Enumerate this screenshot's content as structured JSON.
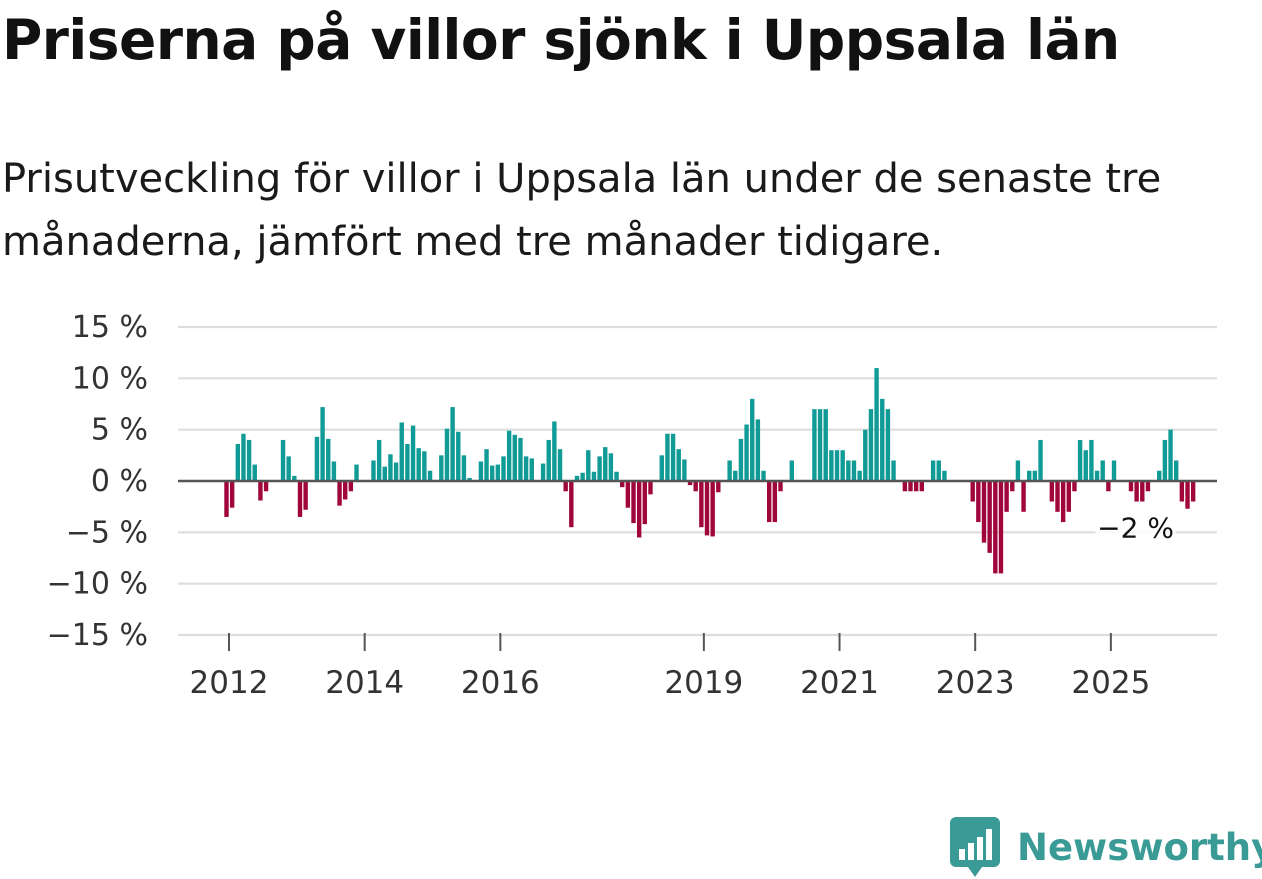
{
  "title": "Priserna på villor sjönk i Uppsala län",
  "subtitle": "Prisutveckling för villor i Uppsala län under de senaste tre månaderna, jämfört med tre månader tidigare.",
  "brand": {
    "name": "Newsworthy",
    "icon": "newsworthy-logo-icon"
  },
  "colors": {
    "positive": "#119b96",
    "negative": "#a0063c",
    "grid": "#dddddd",
    "zero_line": "#555555",
    "brand": "#3a9a96"
  },
  "chart_data": {
    "type": "bar",
    "title": "Priserna på villor sjönk i Uppsala län",
    "xlabel": "",
    "ylabel": "",
    "ylim": [
      -15,
      15
    ],
    "y_ticks": [
      15,
      10,
      5,
      0,
      -5,
      -10,
      -15
    ],
    "y_tick_labels": [
      "15 %",
      "10 %",
      "5 %",
      "0 %",
      "−5 %",
      "−10 %",
      "−15 %"
    ],
    "x_ticks": [
      {
        "label": "2012",
        "index": 0
      },
      {
        "label": "2014",
        "index": 24
      },
      {
        "label": "2016",
        "index": 48
      },
      {
        "label": "2019",
        "index": 84
      },
      {
        "label": "2021",
        "index": 108
      },
      {
        "label": "2023",
        "index": 132
      },
      {
        "label": "2025",
        "index": 156
      }
    ],
    "start": "2012-01",
    "frequency": "monthly",
    "series": [
      {
        "name": "Prisutveckling",
        "values": [
          -3.5,
          -2.6,
          3.6,
          4.6,
          4.0,
          1.6,
          -1.9,
          -1.0,
          0,
          0,
          4.0,
          2.4,
          0.5,
          -3.5,
          -2.8,
          0,
          4.3,
          7.2,
          4.1,
          1.9,
          -2.4,
          -1.8,
          -1.0,
          1.6,
          0,
          0,
          2.0,
          4.0,
          1.4,
          2.6,
          1.8,
          5.7,
          3.6,
          5.4,
          3.2,
          2.9,
          1.0,
          0,
          2.5,
          5.1,
          7.2,
          4.8,
          2.5,
          0.3,
          0,
          1.9,
          3.1,
          1.5,
          1.6,
          2.4,
          4.9,
          4.5,
          4.2,
          2.4,
          2.2,
          0,
          1.7,
          4.0,
          5.8,
          3.1,
          -1.0,
          -4.5,
          0.5,
          0.8,
          3.0,
          0.9,
          2.4,
          3.3,
          2.7,
          0.9,
          -0.6,
          -2.6,
          -4.1,
          -5.5,
          -4.2,
          -1.3,
          0,
          2.5,
          4.6,
          4.6,
          3.1,
          2.1,
          -0.4,
          -1.0,
          -4.5,
          -5.3,
          -5.4,
          -1.1,
          0,
          2.0,
          1.0,
          4.1,
          5.5,
          8.0,
          6.0,
          1.0,
          -4.0,
          -4.0,
          -1.0,
          0,
          2.0,
          0,
          0,
          0,
          7.0,
          7.0,
          7.0,
          3.0,
          3.0,
          3.0,
          2.0,
          2.0,
          1.0,
          5.0,
          7.0,
          11.0,
          8.0,
          7.0,
          2.0,
          0,
          -1.0,
          -1.0,
          -1.0,
          -1.0,
          0,
          2.0,
          2.0,
          1.0,
          0,
          0,
          0,
          0,
          -2.0,
          -4.0,
          -6.0,
          -7.0,
          -9.0,
          -9.0,
          -3.0,
          -1.0,
          2.0,
          -3.0,
          1.0,
          1.0,
          4.0,
          0,
          -2.0,
          -3.0,
          -4.0,
          -3.0,
          -1.0,
          4.0,
          3.0,
          4.0,
          1.0,
          2.0,
          -1.0,
          2.0,
          0,
          0,
          -1.0,
          -2.0,
          -2.0,
          -1.0,
          0,
          1.0,
          4.0,
          5.0,
          2.0,
          -2.0,
          -2.7,
          -2.0
        ]
      }
    ],
    "annotation": {
      "text": "−2 %",
      "index": 167,
      "value": -2.0
    }
  }
}
